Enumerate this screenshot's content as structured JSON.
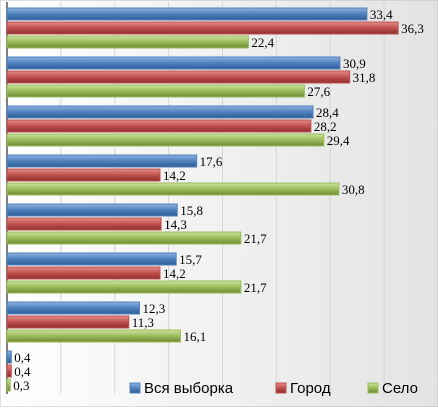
{
  "chart_data": {
    "type": "bar",
    "orientation": "horizontal",
    "categories": [
      "",
      "",
      "",
      "",
      "",
      "",
      "",
      ""
    ],
    "series": [
      {
        "name": "Вся выборка",
        "color": "#4F81BD",
        "values": [
          33.4,
          30.9,
          28.4,
          17.6,
          15.8,
          15.7,
          12.3,
          0.4
        ]
      },
      {
        "name": "Город",
        "color": "#C0504D",
        "values": [
          36.3,
          31.8,
          28.2,
          14.2,
          14.3,
          14.2,
          11.3,
          0.4
        ]
      },
      {
        "name": "Село",
        "color": "#9BBB59",
        "values": [
          22.4,
          27.6,
          29.4,
          30.8,
          21.7,
          21.7,
          16.1,
          0.3
        ]
      }
    ],
    "labels": [
      [
        "33,4",
        "30,9",
        "28,4",
        "17,6",
        "15,8",
        "15,7",
        "12,3",
        "0,4"
      ],
      [
        "36,3",
        "31,8",
        "28,2",
        "14,2",
        "14,3",
        "14,2",
        "11,3",
        "0,4"
      ],
      [
        "22,4",
        "27,6",
        "29,4",
        "30,8",
        "21,7",
        "21,7",
        "16,1",
        "0,3"
      ]
    ],
    "xlim": [
      0,
      40
    ],
    "grid": true,
    "legend_position": "bottom-right"
  }
}
